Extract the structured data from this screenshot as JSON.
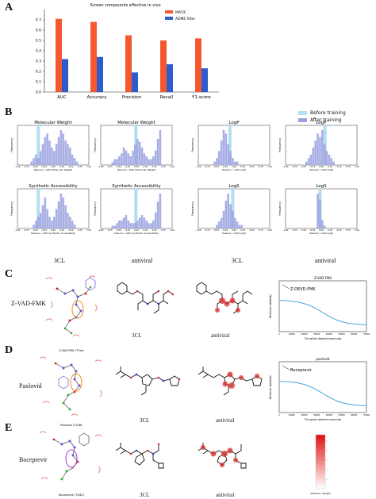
{
  "panels": {
    "A": "A",
    "B": "B",
    "C": "C",
    "D": "D",
    "E": "E"
  },
  "colors": {
    "matic": "#f4582f",
    "admetfilter": "#2f5ccd",
    "hist_before": "#b3def2",
    "hist_after": "#9aa1e0",
    "curve": "#43a6de",
    "atom_red": "#dd2a2a"
  },
  "panelA": {
    "chart_data": {
      "type": "bar",
      "title": "Screen compounds effective in vivo",
      "categories": [
        "AUC",
        "Accuracy",
        "Precision",
        "Recall",
        "F1-score"
      ],
      "series": [
        {
          "name": "MATIC",
          "values": [
            0.71,
            0.68,
            0.55,
            0.5,
            0.52
          ]
        },
        {
          "name": "ADME filter",
          "values": [
            0.32,
            0.34,
            0.19,
            0.27,
            0.23
          ]
        }
      ],
      "ylim": [
        0,
        0.8
      ],
      "yticks": [
        "0.0",
        "0.1",
        "0.2",
        "0.3",
        "0.4",
        "0.5",
        "0.6",
        "0.7"
      ],
      "legend": "top-right"
    }
  },
  "panelB": {
    "legend": [
      "Before training",
      "After training"
    ],
    "columns": [
      "3CL",
      "antiviral",
      "3CL",
      "antiviral"
    ],
    "hist_titles": [
      "Molecular Weight",
      "Molecular Weight",
      "LogP",
      "LogP",
      "Synthetic Accessibility",
      "Synthetic Accessibility",
      "LogS",
      "LogS"
    ],
    "xlabels": [
      "Pearson r with Molecular Weight",
      "Pearson r with Molecular Weight",
      "Pearson r with LogP",
      "Pearson r with LogP",
      "Pearson r with Synthetic Accessibility",
      "Pearson r with Synthetic Accessibility",
      "Pearson r with LogS",
      "Pearson r with LogS"
    ],
    "ylabel": "Frequency",
    "xticks": [
      "-1.00",
      "-0.75",
      "-0.50",
      "-0.25",
      "0.00",
      "0.25",
      "0.50",
      "0.75",
      "1.00"
    ]
  },
  "panelC": {
    "row_label": "Z-VAD-FMK",
    "caption_3cl": "3CL",
    "caption_antiviral": "antiviral",
    "plot_title": "Z-VAD-FMK",
    "annotation": "Z-DEVD-FMK",
    "xlabel": "The whole dataset molecules",
    "ylabel": "Molecule similarity",
    "xticks": [
      "0",
      "10000",
      "20000",
      "30000",
      "40000",
      "50000",
      "60000",
      "70000"
    ]
  },
  "panelD": {
    "row_label": "Paxlovid",
    "caption_3cl": "3CL",
    "caption_antiviral": "antiviral",
    "plot_title": "paxlovid",
    "annotation": "Boceprevir",
    "complex_label": "Z-VAD-FMK (7Tzd)",
    "xlabel": "The whole dataset molecules",
    "ylabel": "Molecule similarity",
    "xticks": [
      "0",
      "10000",
      "20000",
      "30000",
      "40000",
      "50000",
      "60000",
      "70000"
    ]
  },
  "panelE": {
    "row_label": "Boceprevir",
    "caption_3cl": "3CL",
    "caption_antiviral": "antiviral",
    "complex_label": "Paxlovid (7V4B)",
    "complex_label_bottom": "Boceprevir (7K40)",
    "colorbar_label": "Attention Weight"
  }
}
